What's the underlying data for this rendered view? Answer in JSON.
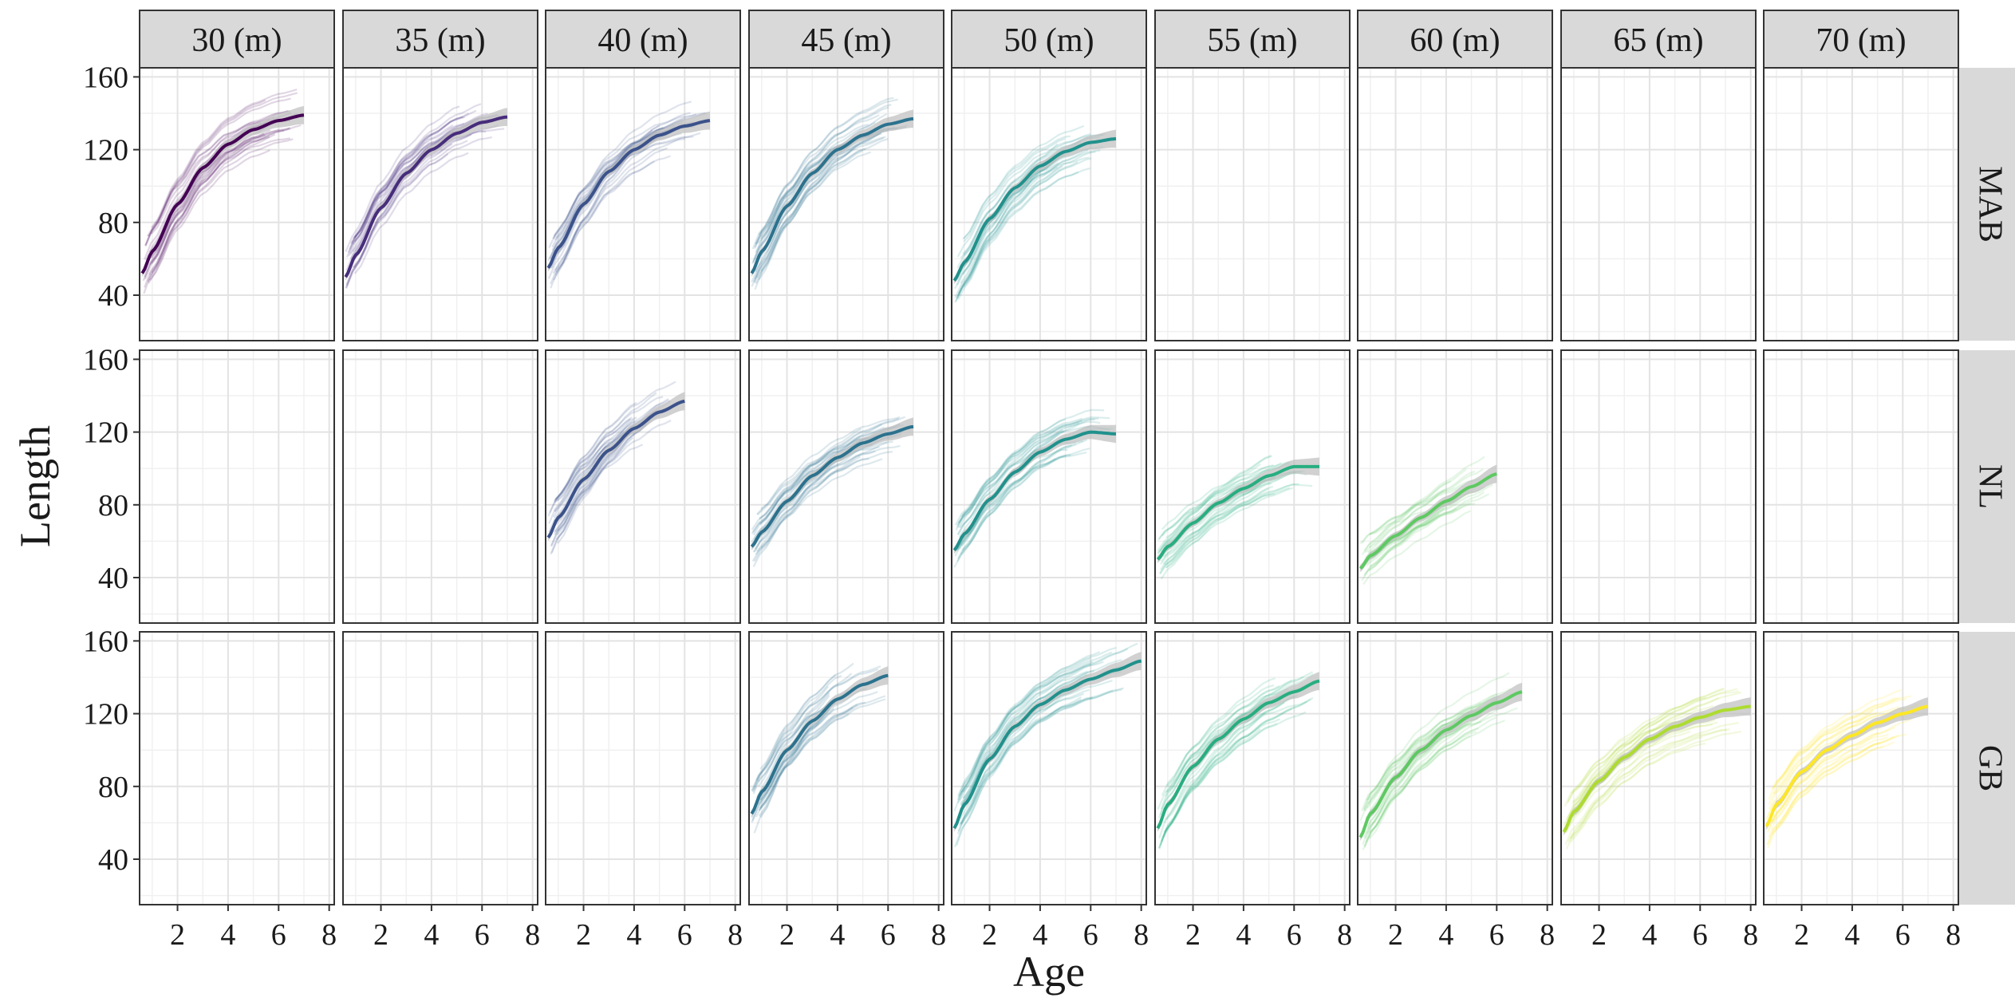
{
  "chart_data": {
    "type": "line",
    "xlabel": "Age",
    "ylabel": "Length",
    "xlim": [
      0.5,
      8.2
    ],
    "ylim": [
      15,
      165
    ],
    "x_ticks": [
      2,
      4,
      6,
      8
    ],
    "y_ticks": [
      40,
      80,
      120,
      160
    ],
    "grid": true,
    "columns": [
      "30 (m)",
      "35 (m)",
      "40 (m)",
      "45 (m)",
      "50 (m)",
      "55 (m)",
      "60 (m)",
      "65 (m)",
      "70 (m)"
    ],
    "rows": [
      "MAB",
      "NL",
      "GB"
    ],
    "palette": [
      "#440154",
      "#472d7b",
      "#3b528b",
      "#2c728e",
      "#21918c",
      "#28ae80",
      "#5ec962",
      "#addc30",
      "#fde725"
    ],
    "panels": [
      {
        "row": "MAB",
        "col": "30 (m)",
        "x_range": [
          0.6,
          7.0
        ],
        "mean": [
          [
            0.6,
            52
          ],
          [
            1,
            64
          ],
          [
            2,
            90
          ],
          [
            3,
            110
          ],
          [
            4,
            123
          ],
          [
            5,
            131
          ],
          [
            6,
            136
          ],
          [
            7,
            139
          ]
        ]
      },
      {
        "row": "MAB",
        "col": "35 (m)",
        "x_range": [
          0.6,
          7.0
        ],
        "mean": [
          [
            0.6,
            50
          ],
          [
            1,
            62
          ],
          [
            2,
            88
          ],
          [
            3,
            107
          ],
          [
            4,
            120
          ],
          [
            5,
            129
          ],
          [
            6,
            135
          ],
          [
            7,
            138
          ]
        ]
      },
      {
        "row": "MAB",
        "col": "40 (m)",
        "x_range": [
          0.6,
          7.0
        ],
        "mean": [
          [
            0.6,
            55
          ],
          [
            1,
            66
          ],
          [
            2,
            90
          ],
          [
            3,
            108
          ],
          [
            4,
            120
          ],
          [
            5,
            128
          ],
          [
            6,
            133
          ],
          [
            7,
            136
          ]
        ]
      },
      {
        "row": "MAB",
        "col": "45 (m)",
        "x_range": [
          0.6,
          7.0
        ],
        "mean": [
          [
            0.6,
            52
          ],
          [
            1,
            64
          ],
          [
            2,
            89
          ],
          [
            3,
            107
          ],
          [
            4,
            120
          ],
          [
            5,
            128
          ],
          [
            6,
            134
          ],
          [
            7,
            137
          ]
        ]
      },
      {
        "row": "MAB",
        "col": "50 (m)",
        "x_range": [
          0.6,
          7.0
        ],
        "mean": [
          [
            0.6,
            48
          ],
          [
            1,
            58
          ],
          [
            2,
            82
          ],
          [
            3,
            99
          ],
          [
            4,
            111
          ],
          [
            5,
            119
          ],
          [
            6,
            124
          ],
          [
            7,
            126
          ]
        ]
      },
      {
        "row": "NL",
        "col": "40 (m)",
        "x_range": [
          0.6,
          6.0
        ],
        "mean": [
          [
            0.6,
            62
          ],
          [
            1,
            73
          ],
          [
            2,
            94
          ],
          [
            3,
            110
          ],
          [
            4,
            122
          ],
          [
            5,
            131
          ],
          [
            6,
            137
          ]
        ]
      },
      {
        "row": "NL",
        "col": "45 (m)",
        "x_range": [
          0.6,
          7.0
        ],
        "mean": [
          [
            0.6,
            57
          ],
          [
            1,
            65
          ],
          [
            2,
            82
          ],
          [
            3,
            96
          ],
          [
            4,
            106
          ],
          [
            5,
            114
          ],
          [
            6,
            119
          ],
          [
            7,
            123
          ]
        ]
      },
      {
        "row": "NL",
        "col": "50 (m)",
        "x_range": [
          0.6,
          7.0
        ],
        "mean": [
          [
            0.6,
            55
          ],
          [
            1,
            64
          ],
          [
            2,
            83
          ],
          [
            3,
            98
          ],
          [
            4,
            109
          ],
          [
            5,
            116
          ],
          [
            6,
            120
          ],
          [
            7,
            119
          ]
        ]
      },
      {
        "row": "NL",
        "col": "55 (m)",
        "x_range": [
          0.6,
          7.0
        ],
        "mean": [
          [
            0.6,
            50
          ],
          [
            1,
            57
          ],
          [
            2,
            70
          ],
          [
            3,
            81
          ],
          [
            4,
            89
          ],
          [
            5,
            96
          ],
          [
            6,
            101
          ],
          [
            7,
            101
          ]
        ]
      },
      {
        "row": "NL",
        "col": "60 (m)",
        "x_range": [
          0.6,
          6.0
        ],
        "mean": [
          [
            0.6,
            45
          ],
          [
            1,
            52
          ],
          [
            2,
            63
          ],
          [
            3,
            73
          ],
          [
            4,
            82
          ],
          [
            5,
            90
          ],
          [
            6,
            97
          ]
        ]
      },
      {
        "row": "GB",
        "col": "45 (m)",
        "x_range": [
          0.6,
          6.0
        ],
        "mean": [
          [
            0.6,
            65
          ],
          [
            1,
            77
          ],
          [
            2,
            100
          ],
          [
            3,
            116
          ],
          [
            4,
            128
          ],
          [
            5,
            136
          ],
          [
            6,
            141
          ]
        ]
      },
      {
        "row": "GB",
        "col": "50 (m)",
        "x_range": [
          0.6,
          8.0
        ],
        "mean": [
          [
            0.6,
            57
          ],
          [
            1,
            70
          ],
          [
            2,
            95
          ],
          [
            3,
            113
          ],
          [
            4,
            125
          ],
          [
            5,
            133
          ],
          [
            6,
            139
          ],
          [
            7,
            144
          ],
          [
            8,
            149
          ]
        ]
      },
      {
        "row": "GB",
        "col": "55 (m)",
        "x_range": [
          0.6,
          7.0
        ],
        "mean": [
          [
            0.6,
            57
          ],
          [
            1,
            70
          ],
          [
            2,
            91
          ],
          [
            3,
            106
          ],
          [
            4,
            117
          ],
          [
            5,
            126
          ],
          [
            6,
            132
          ],
          [
            7,
            138
          ]
        ]
      },
      {
        "row": "GB",
        "col": "60 (m)",
        "x_range": [
          0.6,
          7.0
        ],
        "mean": [
          [
            0.6,
            52
          ],
          [
            1,
            65
          ],
          [
            2,
            85
          ],
          [
            3,
            100
          ],
          [
            4,
            111
          ],
          [
            5,
            119
          ],
          [
            6,
            126
          ],
          [
            7,
            132
          ]
        ]
      },
      {
        "row": "GB",
        "col": "65 (m)",
        "x_range": [
          0.6,
          8.0
        ],
        "mean": [
          [
            0.6,
            55
          ],
          [
            1,
            66
          ],
          [
            2,
            83
          ],
          [
            3,
            96
          ],
          [
            4,
            106
          ],
          [
            5,
            113
          ],
          [
            6,
            118
          ],
          [
            7,
            122
          ],
          [
            8,
            124
          ]
        ]
      },
      {
        "row": "GB",
        "col": "70 (m)",
        "x_range": [
          0.6,
          7.0
        ],
        "mean": [
          [
            0.6,
            58
          ],
          [
            1,
            70
          ],
          [
            2,
            88
          ],
          [
            3,
            100
          ],
          [
            4,
            108
          ],
          [
            5,
            115
          ],
          [
            6,
            120
          ],
          [
            7,
            124
          ]
        ]
      }
    ]
  }
}
